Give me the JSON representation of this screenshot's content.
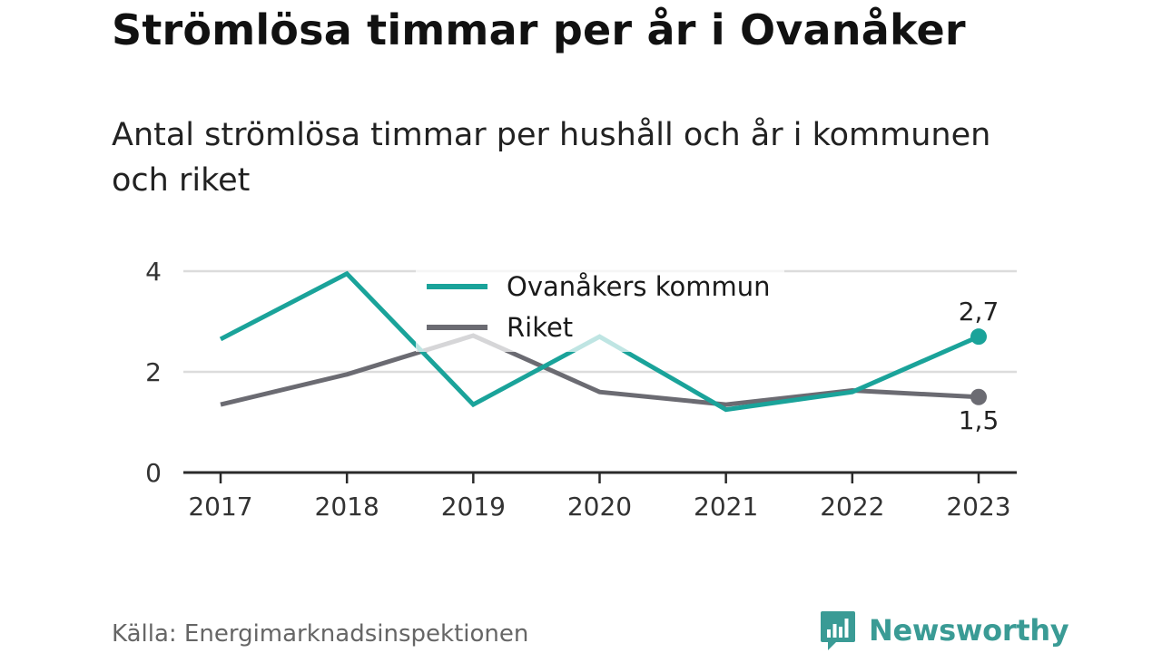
{
  "header": {
    "title": "Strömlösa timmar per år i Ovanåker",
    "subtitle": "Antal strömlösa timmar per hushåll och år i kommunen och riket"
  },
  "footer": {
    "source": "Källa: Energimarknadsinspektionen",
    "brand": "Newsworthy"
  },
  "chart_data": {
    "type": "line",
    "title": "Strömlösa timmar per år i Ovanåker",
    "subtitle": "Antal strömlösa timmar per hushåll och år i kommunen och riket",
    "xlabel": "",
    "ylabel": "",
    "x": [
      "2017",
      "2018",
      "2019",
      "2020",
      "2021",
      "2022",
      "2023"
    ],
    "ylim": [
      0,
      4
    ],
    "yticks": [
      "0",
      "2",
      "4"
    ],
    "grid": true,
    "legend_position": "top-center",
    "series": [
      {
        "name": "Ovanåkers kommun",
        "color": "#1aa39a",
        "values": [
          2.65,
          3.95,
          1.35,
          2.7,
          1.25,
          1.6,
          2.7
        ],
        "end_label": "2,7"
      },
      {
        "name": "Riket",
        "color": "#6b6b72",
        "values": [
          1.35,
          1.95,
          2.72,
          1.6,
          1.35,
          1.63,
          1.5
        ],
        "end_label": "1,5"
      }
    ]
  }
}
